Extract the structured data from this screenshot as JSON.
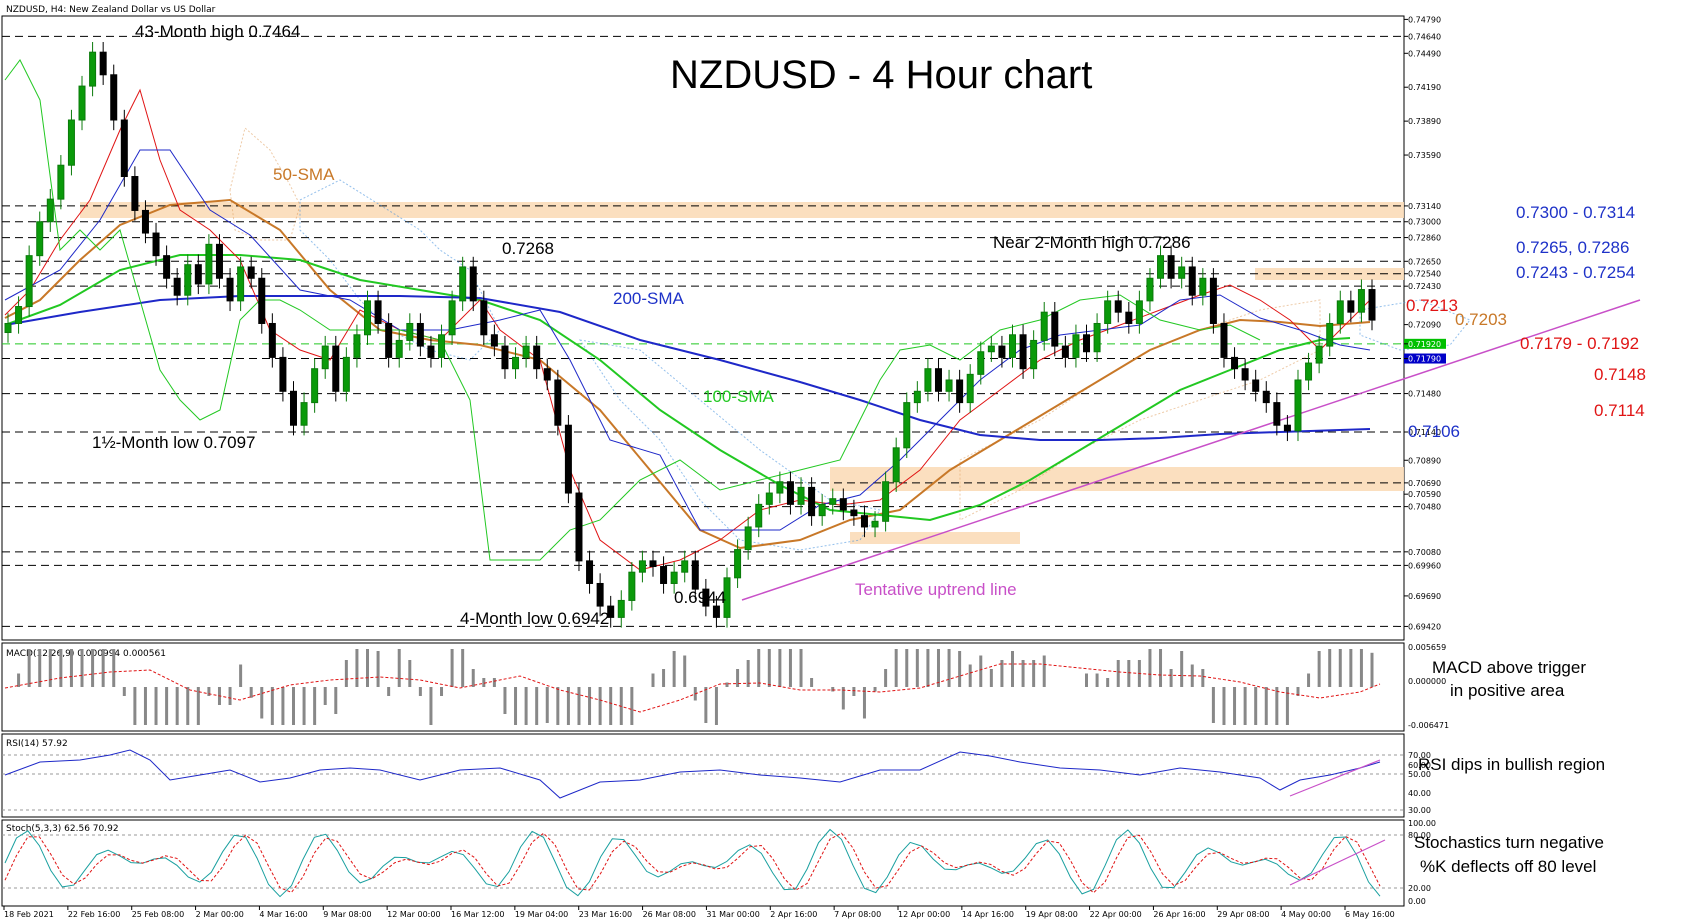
{
  "header": {
    "symbol_info": "NZDUSD, H4:  New Zealand Dollar vs US Dollar",
    "title": "NZDUSD - 4 Hour chart"
  },
  "chart_data": {
    "type": "candlestick",
    "title": "NZDUSD - 4 Hour chart",
    "x_ticks": [
      "18 Feb 2021",
      "22 Feb 16:00",
      "25 Feb 08:00",
      "2 Mar 00:00",
      "4 Mar 16:00",
      "9 Mar 08:00",
      "12 Mar 00:00",
      "16 Mar 12:00",
      "19 Mar 04:00",
      "23 Mar 16:00",
      "26 Mar 08:00",
      "31 Mar 00:00",
      "2 Apr 16:00",
      "7 Apr 08:00",
      "12 Apr 00:00",
      "14 Apr 16:00",
      "19 Apr 08:00",
      "22 Apr 00:00",
      "26 Apr 16:00",
      "29 Apr 08:00",
      "4 May 00:00",
      "6 May 16:00"
    ],
    "price_axis": [
      "0.74790",
      "0.74640",
      "0.74490",
      "0.74190",
      "0.73890",
      "0.73590",
      "0.73140",
      "0.73000",
      "0.72860",
      "0.72650",
      "0.72540",
      "0.72430",
      "0.72090",
      "0.71920",
      "0.71790",
      "0.71480",
      "0.71140",
      "0.70890",
      "0.70690",
      "0.70590",
      "0.70480",
      "0.70080",
      "0.69960",
      "0.69690",
      "0.69420"
    ],
    "ylim": [
      0.693,
      0.7482
    ],
    "highlight_labels": [
      "0.71920",
      "0.71790"
    ],
    "highlight_colors": [
      "#00c000",
      "#0000c8"
    ],
    "close_series": [
      0.721,
      0.7225,
      0.727,
      0.73,
      0.732,
      0.735,
      0.739,
      0.742,
      0.745,
      0.743,
      0.739,
      0.734,
      0.731,
      0.729,
      0.727,
      0.725,
      0.7235,
      0.7262,
      0.7245,
      0.728,
      0.725,
      0.723,
      0.726,
      0.725,
      0.721,
      0.718,
      0.715,
      0.712,
      0.714,
      0.717,
      0.719,
      0.715,
      0.718,
      0.72,
      0.723,
      0.721,
      0.718,
      0.7195,
      0.721,
      0.719,
      0.718,
      0.72,
      0.723,
      0.726,
      0.723,
      0.72,
      0.719,
      0.717,
      0.718,
      0.719,
      0.717,
      0.716,
      0.712,
      0.706,
      0.7,
      0.698,
      0.696,
      0.695,
      0.6965,
      0.699,
      0.7,
      0.6995,
      0.698,
      0.699,
      0.7,
      0.6975,
      0.696,
      0.695,
      0.6985,
      0.701,
      0.703,
      0.705,
      0.706,
      0.707,
      0.705,
      0.7065,
      0.704,
      0.705,
      0.7055,
      0.7045,
      0.704,
      0.703,
      0.7035,
      0.707,
      0.71,
      0.714,
      0.715,
      0.717,
      0.715,
      0.716,
      0.714,
      0.7165,
      0.7185,
      0.719,
      0.718,
      0.72,
      0.717,
      0.7195,
      0.722,
      0.719,
      0.718,
      0.72,
      0.7185,
      0.721,
      0.723,
      0.722,
      0.721,
      0.723,
      0.725,
      0.727,
      0.725,
      0.726,
      0.7235,
      0.725,
      0.721,
      0.718,
      0.717,
      0.716,
      0.715,
      0.714,
      0.712,
      0.7115,
      0.716,
      0.7175,
      0.719,
      0.721,
      0.723,
      0.722,
      0.724,
      0.7213
    ],
    "series": [
      {
        "name": "50-SMA",
        "color": "#c87828"
      },
      {
        "name": "100-SMA",
        "color": "#22c822"
      },
      {
        "name": "200-SMA",
        "color": "#1e28c8"
      }
    ],
    "annotations": {
      "high_43m": "43-Month high 0.7464",
      "high_0_7268": "0.7268",
      "near_2m_high": "Near 2-Month high 0.7286",
      "low_1_5m": "1½-Month low 0.7097",
      "low_4m": "4-Month low 0.6942",
      "low_0_6944": "0.6944",
      "uptrend": "Tentative uptrend line",
      "sma50": "50-SMA",
      "sma100": "100-SMA",
      "sma200": "200-SMA"
    },
    "levels": [
      {
        "label": "0.7300 - 0.7314",
        "color": "#1e32c8"
      },
      {
        "label": "0.7265, 0.7286",
        "color": "#1e32c8"
      },
      {
        "label": "0.7243 - 0.7254",
        "color": "#1e32c8"
      },
      {
        "label": "0.7213",
        "color": "#e01414"
      },
      {
        "label": "0.7203",
        "color": "#c87828"
      },
      {
        "label": "0.7179 - 0.7192",
        "color": "#e01414"
      },
      {
        "label": "0.7148",
        "color": "#e01414"
      },
      {
        "label": "0.7114",
        "color": "#e01414"
      },
      {
        "label": "0.7106",
        "color": "#1e32c8"
      }
    ],
    "macd": {
      "label": "MACD(12,26,9) 0.000994 0.000561",
      "axis": [
        "0.005659",
        "0.000000",
        "-0.006471"
      ],
      "note_line1": "MACD above trigger",
      "note_line2": "in positive area"
    },
    "rsi": {
      "label": "RSI(14) 57.92",
      "axis": [
        "70.00",
        "60.00",
        "50.00",
        "40.00",
        "30.00"
      ],
      "note": "RSI dips in bullish region"
    },
    "stoch": {
      "label": "Stoch(5,3,3) 62.56 70.92",
      "axis": [
        "100.00",
        "80.00",
        "20.00",
        "0.00"
      ],
      "note_line1": "Stochastics turn negative",
      "note_line2": "%K deflects off 80 level"
    }
  }
}
